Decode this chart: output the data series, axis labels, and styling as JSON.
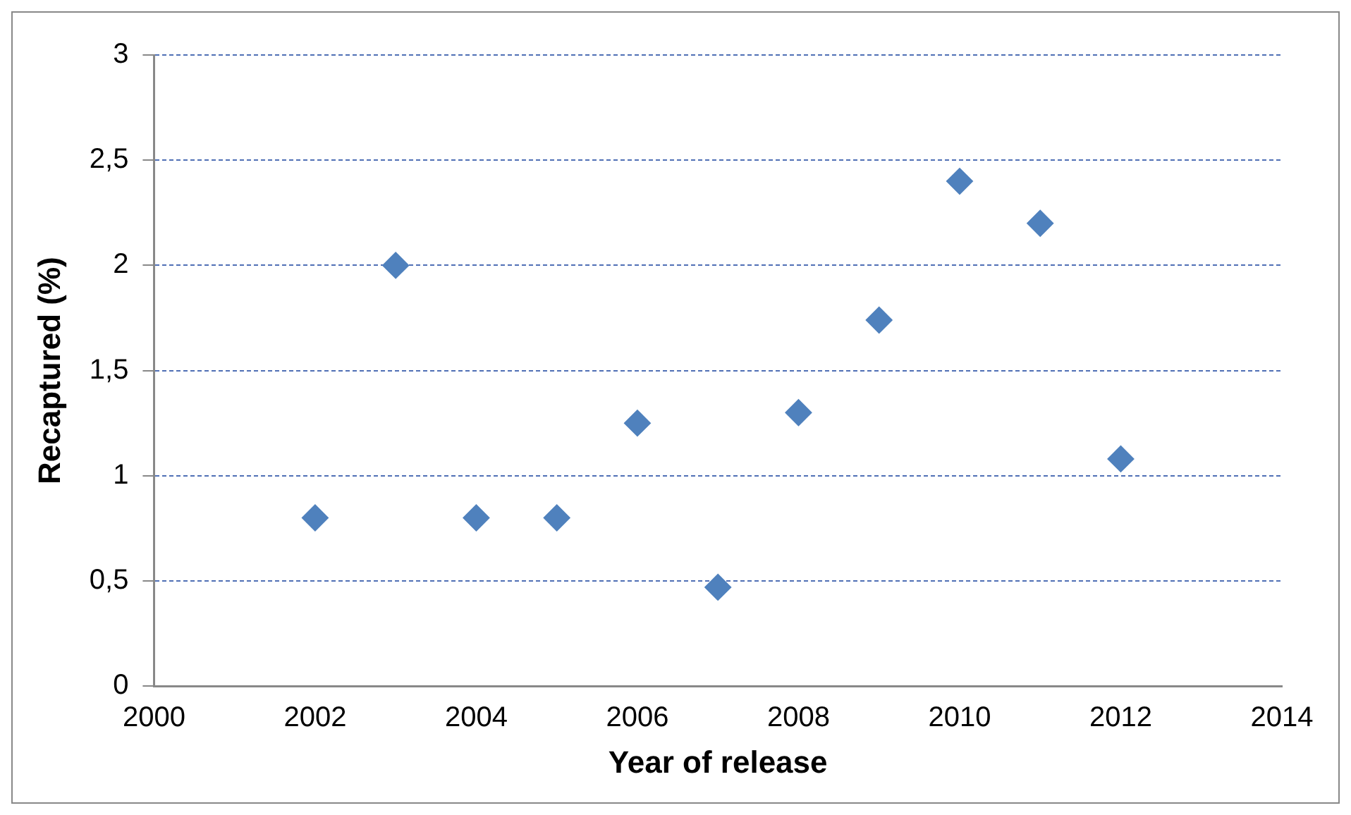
{
  "chart_data": {
    "type": "scatter",
    "xlabel": "Year of release",
    "ylabel": "Recaptured (%)",
    "x": [
      2002,
      2003,
      2004,
      2005,
      2006,
      2007,
      2008,
      2009,
      2010,
      2011,
      2012
    ],
    "series": [
      {
        "color": "#4f81bd",
        "values": [
          0.8,
          2.0,
          0.8,
          0.8,
          1.25,
          0.47,
          1.3,
          1.74,
          2.4,
          2.2,
          1.08
        ]
      }
    ],
    "xlim": [
      2000,
      2014
    ],
    "xticks": [
      2000,
      2002,
      2004,
      2006,
      2008,
      2010,
      2012,
      2014
    ],
    "ylim": [
      0,
      3
    ],
    "yticks": [
      0,
      {
        "value": 0.5,
        "label": "0,5"
      },
      1,
      {
        "value": 1.5,
        "label": "1,5"
      },
      2,
      {
        "value": 2.5,
        "label": "2,5"
      },
      3
    ],
    "grid": "y",
    "marker": "diamond",
    "legend": false
  }
}
